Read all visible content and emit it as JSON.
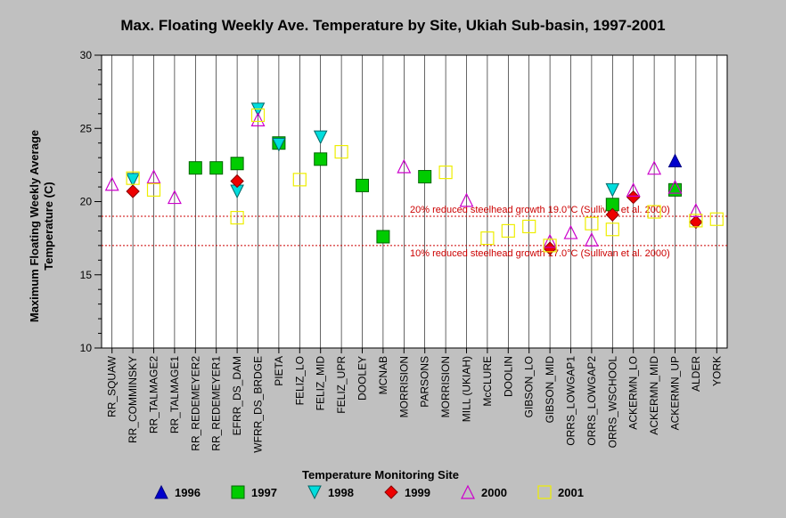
{
  "chart_data": {
    "type": "scatter",
    "title": "Max. Floating Weekly Ave. Temperature by Site, Ukiah Sub-basin, 1997-2001",
    "xlabel": "Temperature Monitoring Site",
    "ylabel_line1": "Maximum Floating Weekly Average",
    "ylabel_line2": "Temperature (C)",
    "ylim": [
      10,
      30
    ],
    "yticks": [
      10,
      15,
      20,
      25,
      30
    ],
    "categories": [
      "RR_SQUAW",
      "RR_COMMINSKY",
      "RR_TALMAGE2",
      "RR_TALMAGE1",
      "RR_REDEMEYER2",
      "RR_REDEMEYER1",
      "EFRR_DS_DAM",
      "WFRR_DS_BRDGE",
      "PIETA",
      "FELIZ_LO",
      "FELIZ_MID",
      "FELIZ_UPR",
      "DOOLEY",
      "MCNAB",
      "MORRISION",
      "PARSONS",
      "MORRISION",
      "MILL (UKIAH)",
      "McCLURE",
      "DOOLIN",
      "GIBSON_LO",
      "GIBSON_MID",
      "ORRS_LOWGAP1",
      "ORRS_LOWGAP2",
      "ORRS_WSCHOOL",
      "ACKERMN_LO",
      "ACKERMN_MID",
      "ACKERMN_UP",
      "ALDER",
      "YORK"
    ],
    "reference_lines": [
      {
        "y": 19.0,
        "label": "20% reduced steelhead growth 19.0°C (Sullivan et al. 2000)",
        "color": "#cc0000"
      },
      {
        "y": 17.0,
        "label": "10% reduced steelhead growth 17.0°C (Sullivan et al. 2000)",
        "color": "#cc0000"
      }
    ],
    "series": [
      {
        "name": "1996",
        "marker": "triangle-up",
        "fill": "#0000cc",
        "stroke": "#000080",
        "points": [
          [
            27,
            22.8
          ]
        ]
      },
      {
        "name": "1997",
        "marker": "square",
        "fill": "#00cc00",
        "stroke": "#006600",
        "points": [
          [
            4,
            22.3
          ],
          [
            5,
            22.3
          ],
          [
            6,
            22.6
          ],
          [
            8,
            24.0
          ],
          [
            10,
            22.9
          ],
          [
            12,
            21.1
          ],
          [
            13,
            17.6
          ],
          [
            15,
            21.7
          ],
          [
            24,
            19.8
          ],
          [
            27,
            20.8
          ]
        ]
      },
      {
        "name": "1998",
        "marker": "triangle-down",
        "fill": "#00dddd",
        "stroke": "#006666",
        "points": [
          [
            1,
            21.5
          ],
          [
            6,
            20.7
          ],
          [
            7,
            26.3
          ],
          [
            8,
            23.9
          ],
          [
            10,
            24.4
          ],
          [
            24,
            20.8
          ]
        ]
      },
      {
        "name": "1999",
        "marker": "diamond",
        "fill": "#ee0000",
        "stroke": "#880000",
        "points": [
          [
            1,
            20.7
          ],
          [
            6,
            21.4
          ],
          [
            21,
            16.8
          ],
          [
            24,
            19.1
          ],
          [
            25,
            20.3
          ],
          [
            28,
            18.6
          ]
        ]
      },
      {
        "name": "2000",
        "marker": "triangle-up-open",
        "fill": "none",
        "stroke": "#cc00cc",
        "points": [
          [
            0,
            21.2
          ],
          [
            2,
            21.7
          ],
          [
            3,
            20.3
          ],
          [
            7,
            25.6
          ],
          [
            14,
            22.4
          ],
          [
            17,
            20.1
          ],
          [
            21,
            17.3
          ],
          [
            22,
            17.9
          ],
          [
            23,
            17.4
          ],
          [
            25,
            20.8
          ],
          [
            26,
            22.3
          ],
          [
            27,
            21.0
          ],
          [
            28,
            19.4
          ]
        ]
      },
      {
        "name": "2001",
        "marker": "square-open",
        "fill": "none",
        "stroke": "#eeee00",
        "points": [
          [
            1,
            21.6
          ],
          [
            2,
            20.8
          ],
          [
            6,
            18.9
          ],
          [
            7,
            25.9
          ],
          [
            9,
            21.5
          ],
          [
            11,
            23.4
          ],
          [
            16,
            22.0
          ],
          [
            18,
            17.5
          ],
          [
            19,
            18.0
          ],
          [
            20,
            18.3
          ],
          [
            21,
            17.0
          ],
          [
            23,
            18.5
          ],
          [
            24,
            18.1
          ],
          [
            26,
            19.3
          ],
          [
            28,
            18.7
          ],
          [
            29,
            18.8
          ]
        ]
      }
    ],
    "grid": "vertical",
    "legend_position": "bottom"
  }
}
